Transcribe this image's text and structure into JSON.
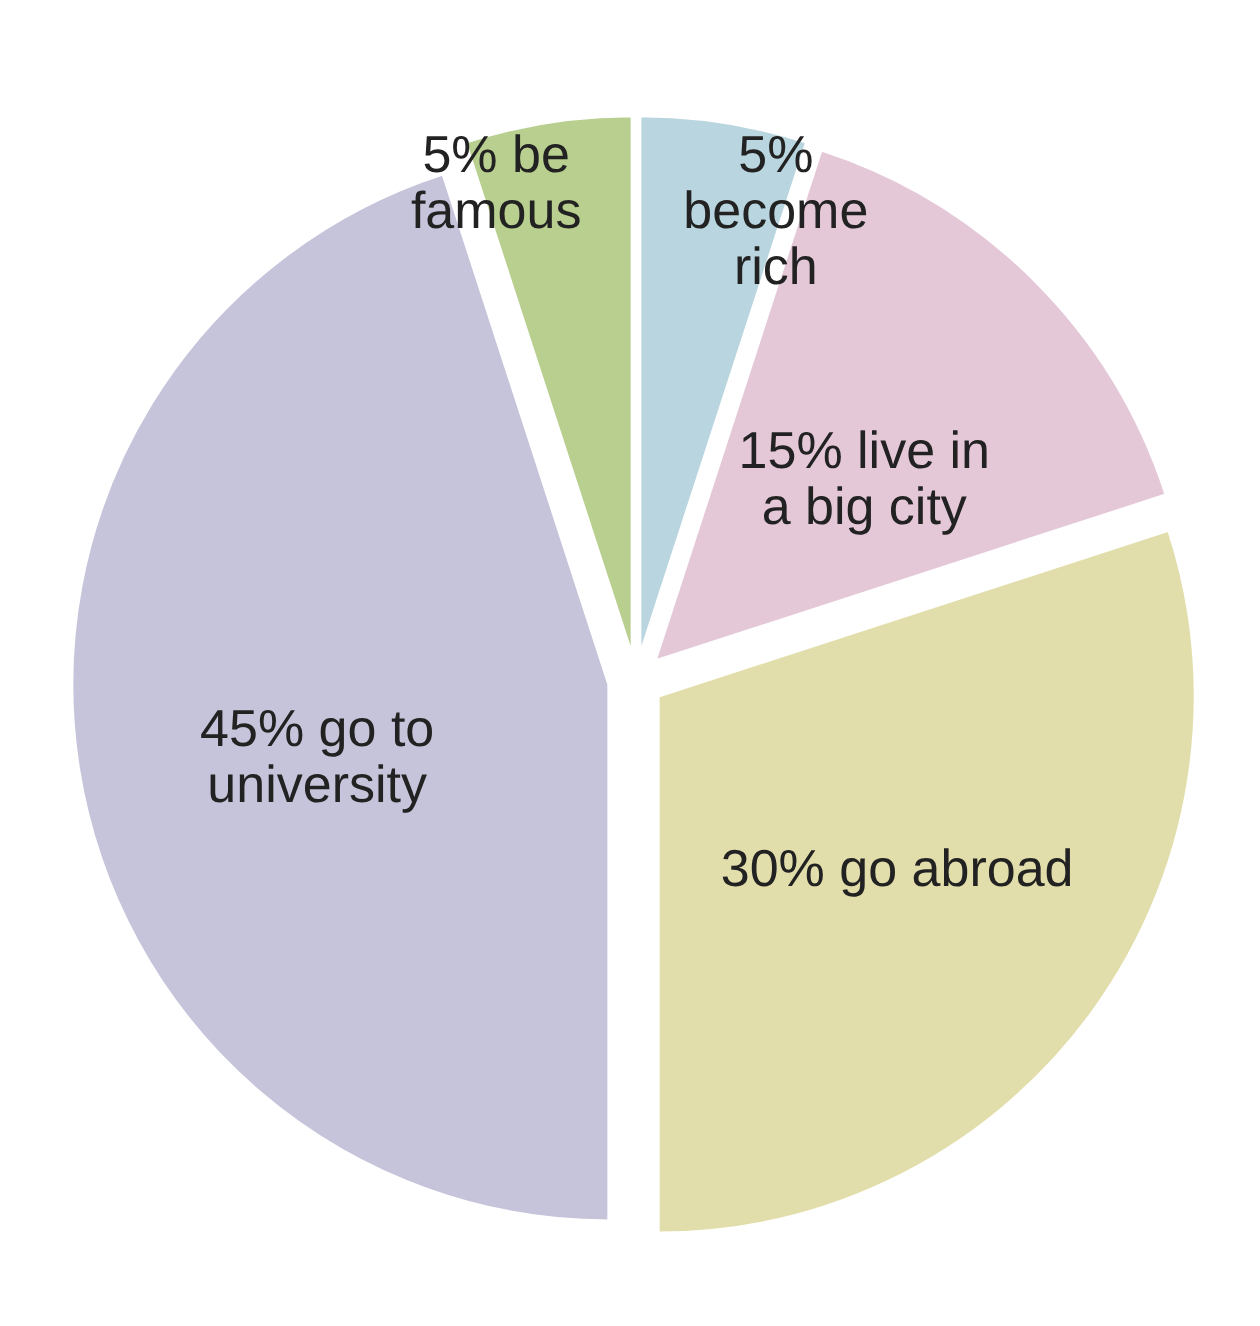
{
  "chart_data": {
    "type": "pie",
    "categories": [
      "become rich",
      "live in a big city",
      "go abroad",
      "go to university",
      "be famous"
    ],
    "values": [
      5,
      15,
      30,
      45,
      5
    ],
    "value_labels": [
      "5%",
      "15%",
      "30%",
      "45%",
      "5%"
    ],
    "colors": [
      "#b9d5df",
      "#e4c8d8",
      "#e2deab",
      "#c6c4da",
      "#b8cf8f"
    ]
  }
}
